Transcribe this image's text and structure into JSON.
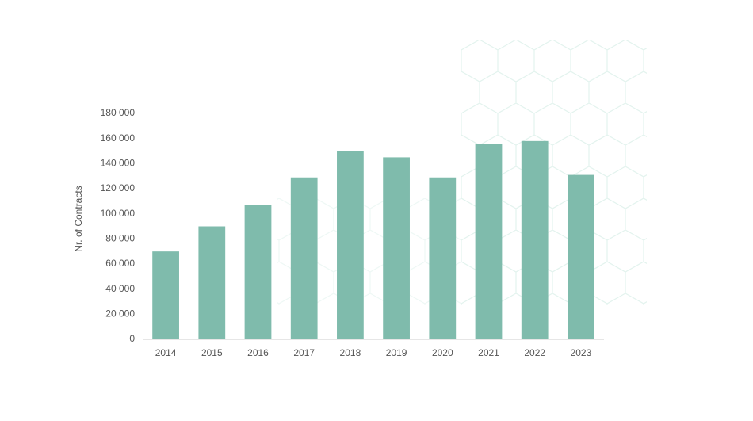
{
  "chart_data": {
    "type": "bar",
    "y_label": "Nr. of Contracts",
    "categories": [
      "2014",
      "2015",
      "2016",
      "2017",
      "2018",
      "2019",
      "2020",
      "2021",
      "2022",
      "2023"
    ],
    "values": [
      70000,
      90000,
      107000,
      129000,
      150000,
      145000,
      129000,
      156000,
      158000,
      131000
    ],
    "color": "#7fbbac",
    "ylim": [
      0,
      180000
    ],
    "yticks": [
      0,
      {
        "value": 20000,
        "label": "20 000"
      },
      {
        "value": 40000,
        "label": "40 000"
      },
      {
        "value": 60000,
        "label": "60 000"
      },
      {
        "value": 80000,
        "label": "80 000"
      },
      {
        "value": 100000,
        "label": "100 000"
      },
      {
        "value": 120000,
        "label": "120 000"
      },
      {
        "value": 140000,
        "label": "140 000"
      },
      {
        "value": 160000,
        "label": "160 000"
      },
      {
        "value": 180000,
        "label": "180 000"
      }
    ],
    "grid": false
  }
}
